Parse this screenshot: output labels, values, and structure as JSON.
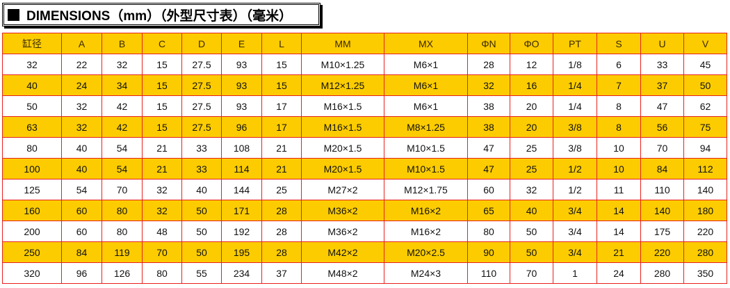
{
  "title": "DIMENSIONS（mm）（外型尺寸表）（毫米）",
  "colors": {
    "highlight": "#fccc00",
    "grid": "#e8201c"
  },
  "headers": [
    "缸径",
    "A",
    "B",
    "C",
    "D",
    "E",
    "L",
    "MM",
    "MX",
    "ΦN",
    "ΦO",
    "PT",
    "S",
    "U",
    "V"
  ],
  "rows": [
    [
      "32",
      "22",
      "32",
      "15",
      "27.5",
      "93",
      "15",
      "M10×1.25",
      "M6×1",
      "28",
      "12",
      "1/8",
      "6",
      "33",
      "45"
    ],
    [
      "40",
      "24",
      "34",
      "15",
      "27.5",
      "93",
      "15",
      "M12×1.25",
      "M6×1",
      "32",
      "16",
      "1/4",
      "7",
      "37",
      "50"
    ],
    [
      "50",
      "32",
      "42",
      "15",
      "27.5",
      "93",
      "17",
      "M16×1.5",
      "M6×1",
      "38",
      "20",
      "1/4",
      "8",
      "47",
      "62"
    ],
    [
      "63",
      "32",
      "42",
      "15",
      "27.5",
      "96",
      "17",
      "M16×1.5",
      "M8×1.25",
      "38",
      "20",
      "3/8",
      "8",
      "56",
      "75"
    ],
    [
      "80",
      "40",
      "54",
      "21",
      "33",
      "108",
      "21",
      "M20×1.5",
      "M10×1.5",
      "47",
      "25",
      "3/8",
      "10",
      "70",
      "94"
    ],
    [
      "100",
      "40",
      "54",
      "21",
      "33",
      "114",
      "21",
      "M20×1.5",
      "M10×1.5",
      "47",
      "25",
      "1/2",
      "10",
      "84",
      "112"
    ],
    [
      "125",
      "54",
      "70",
      "32",
      "40",
      "144",
      "25",
      "M27×2",
      "M12×1.75",
      "60",
      "32",
      "1/2",
      "11",
      "110",
      "140"
    ],
    [
      "160",
      "60",
      "80",
      "32",
      "50",
      "171",
      "28",
      "M36×2",
      "M16×2",
      "65",
      "40",
      "3/4",
      "14",
      "140",
      "180"
    ],
    [
      "200",
      "60",
      "80",
      "48",
      "50",
      "192",
      "28",
      "M36×2",
      "M16×2",
      "80",
      "50",
      "3/4",
      "14",
      "175",
      "220"
    ],
    [
      "250",
      "84",
      "119",
      "70",
      "50",
      "195",
      "28",
      "M42×2",
      "M20×2.5",
      "90",
      "50",
      "3/4",
      "21",
      "220",
      "280"
    ],
    [
      "320",
      "96",
      "126",
      "80",
      "55",
      "234",
      "37",
      "M48×2",
      "M24×3",
      "110",
      "70",
      "1",
      "24",
      "280",
      "350"
    ]
  ]
}
